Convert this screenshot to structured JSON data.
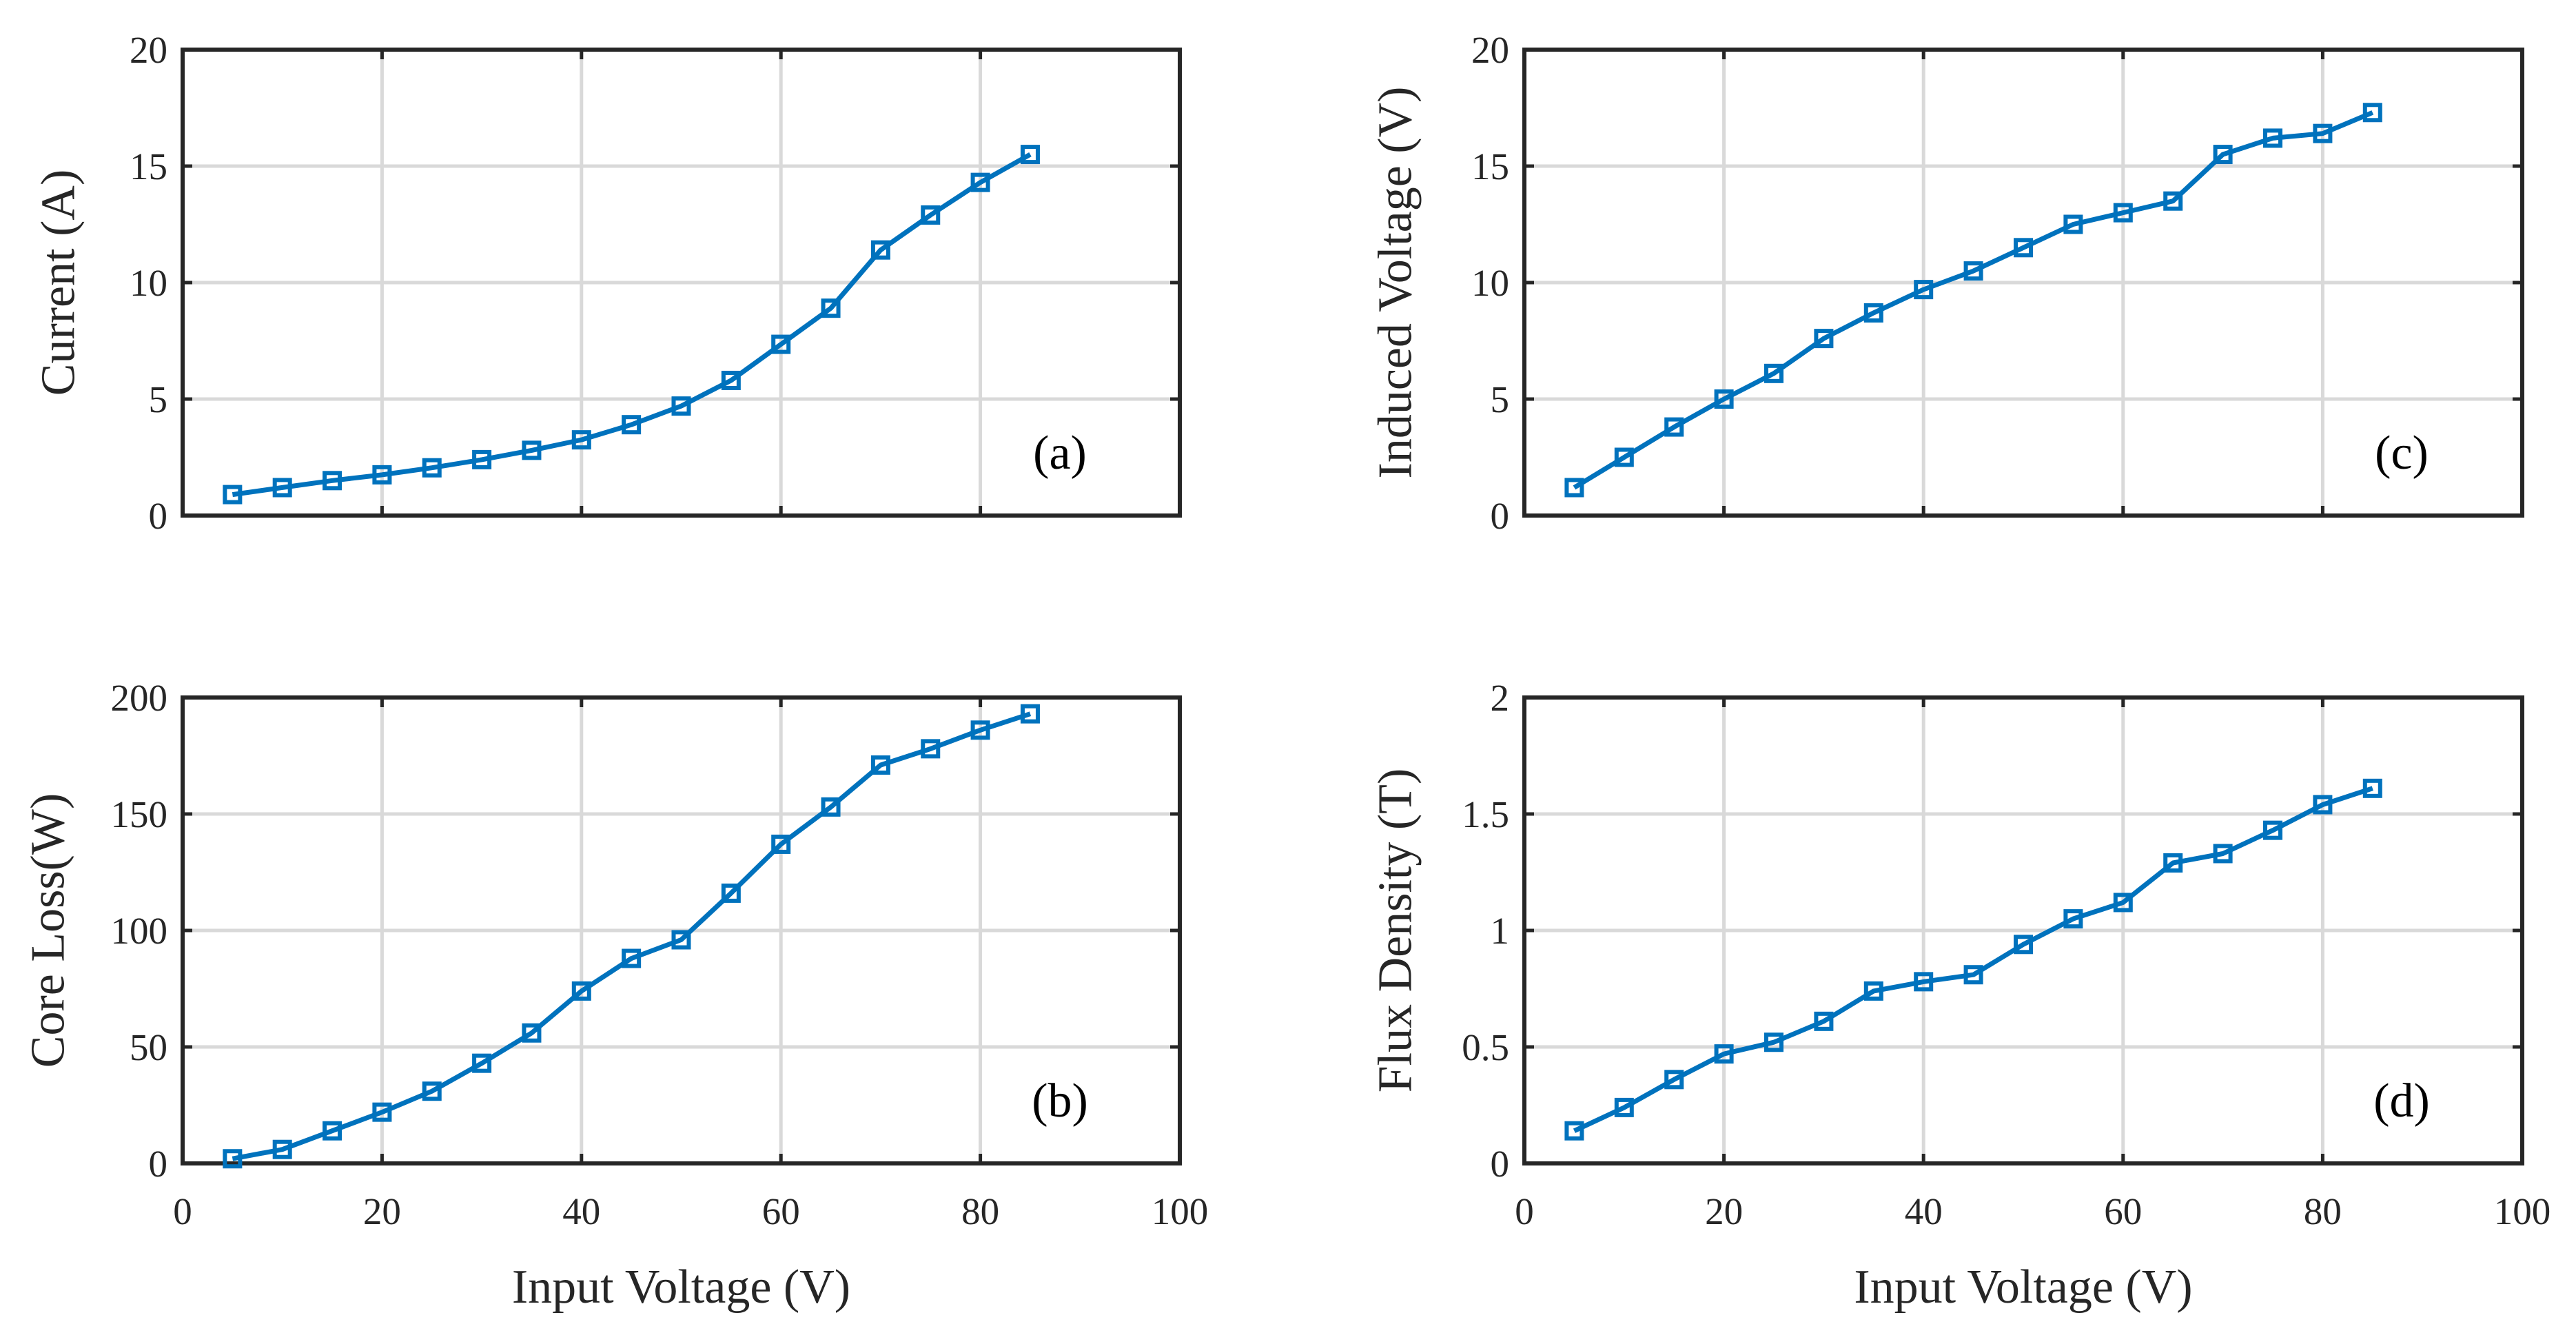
{
  "colors": {
    "series": "#0072BD",
    "axis": "#262626",
    "grid": "#d9d9d9"
  },
  "chart_data": [
    {
      "type": "line",
      "panel": "(a)",
      "xlabel": "",
      "ylabel": "Current (A)",
      "xlim": [
        0,
        100
      ],
      "ylim": [
        0,
        20
      ],
      "xticks": [
        0,
        20,
        40,
        60,
        80,
        100
      ],
      "yticks": [
        0,
        5,
        10,
        15,
        20
      ],
      "show_xtick_labels": false,
      "grid": true,
      "x": [
        5,
        10,
        15,
        20,
        25,
        30,
        35,
        40,
        45,
        50,
        55,
        60,
        65,
        70,
        75,
        80,
        85
      ],
      "series": [
        {
          "name": "Current",
          "values": [
            0.9,
            1.2,
            1.5,
            1.75,
            2.05,
            2.4,
            2.8,
            3.25,
            3.9,
            4.7,
            5.8,
            7.35,
            8.9,
            11.4,
            12.9,
            14.3,
            15.5
          ]
        }
      ]
    },
    {
      "type": "line",
      "panel": "(c)",
      "xlabel": "",
      "ylabel": "Induced Voltage (V)",
      "xlim": [
        0,
        100
      ],
      "ylim": [
        0,
        20
      ],
      "xticks": [
        0,
        20,
        40,
        60,
        80,
        100
      ],
      "yticks": [
        0,
        5,
        10,
        15,
        20
      ],
      "show_xtick_labels": false,
      "grid": true,
      "x": [
        5,
        10,
        15,
        20,
        25,
        30,
        35,
        40,
        45,
        50,
        55,
        60,
        65,
        70,
        75,
        80,
        85
      ],
      "series": [
        {
          "name": "Induced Voltage",
          "values": [
            1.2,
            2.5,
            3.8,
            5.0,
            6.1,
            7.6,
            8.7,
            9.7,
            10.5,
            11.5,
            12.5,
            13.0,
            13.5,
            15.5,
            16.2,
            16.4,
            17.3
          ]
        }
      ]
    },
    {
      "type": "line",
      "panel": "(b)",
      "xlabel": "Input Voltage (V)",
      "ylabel": "Core Loss(W)",
      "xlim": [
        0,
        100
      ],
      "ylim": [
        0,
        200
      ],
      "xticks": [
        0,
        20,
        40,
        60,
        80,
        100
      ],
      "yticks": [
        0,
        50,
        100,
        150,
        200
      ],
      "show_xtick_labels": true,
      "grid": true,
      "x": [
        5,
        10,
        15,
        20,
        25,
        30,
        35,
        40,
        45,
        50,
        55,
        60,
        65,
        70,
        75,
        80,
        85
      ],
      "series": [
        {
          "name": "Core Loss",
          "values": [
            2,
            6,
            14,
            22,
            31,
            43,
            56,
            74,
            88,
            96,
            116,
            137,
            153,
            171,
            178,
            186,
            193
          ]
        }
      ]
    },
    {
      "type": "line",
      "panel": "(d)",
      "xlabel": "Input Voltage (V)",
      "ylabel": "Flux Density (T)",
      "xlim": [
        0,
        100
      ],
      "ylim": [
        0,
        2
      ],
      "xticks": [
        0,
        20,
        40,
        60,
        80,
        100
      ],
      "yticks": [
        0,
        0.5,
        1,
        1.5,
        2
      ],
      "show_xtick_labels": true,
      "grid": true,
      "x": [
        5,
        10,
        15,
        20,
        25,
        30,
        35,
        40,
        45,
        50,
        55,
        60,
        65,
        70,
        75,
        80,
        85
      ],
      "series": [
        {
          "name": "Flux Density",
          "values": [
            0.14,
            0.24,
            0.36,
            0.47,
            0.52,
            0.61,
            0.74,
            0.78,
            0.81,
            0.94,
            1.05,
            1.12,
            1.29,
            1.33,
            1.43,
            1.54,
            1.61
          ]
        }
      ]
    }
  ]
}
